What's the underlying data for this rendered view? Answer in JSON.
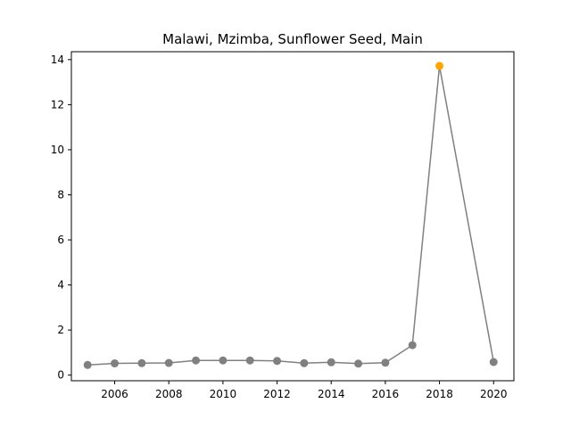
{
  "chart_data": {
    "type": "line",
    "title": "Malawi, Mzimba, Sunflower Seed, Main",
    "xlabel": "",
    "ylabel": "",
    "xlim": [
      2004.4,
      2020.75
    ],
    "ylim": [
      -0.25,
      14.35
    ],
    "x_ticks": [
      2006,
      2008,
      2010,
      2012,
      2014,
      2016,
      2018,
      2020
    ],
    "y_ticks": [
      0,
      2,
      4,
      6,
      8,
      10,
      12,
      14
    ],
    "grid": false,
    "line_color": "#808080",
    "highlight_color": "#ffa500",
    "series": [
      {
        "x": [
          2005,
          2006,
          2007,
          2008,
          2009,
          2010,
          2011,
          2012,
          2013,
          2014,
          2015,
          2016,
          2017,
          2018,
          2020
        ],
        "values": [
          0.45,
          0.52,
          0.53,
          0.54,
          0.65,
          0.65,
          0.65,
          0.63,
          0.53,
          0.57,
          0.51,
          0.55,
          1.33,
          13.72,
          0.58
        ]
      }
    ],
    "highlight": {
      "x": 2018,
      "value": 13.72
    }
  }
}
